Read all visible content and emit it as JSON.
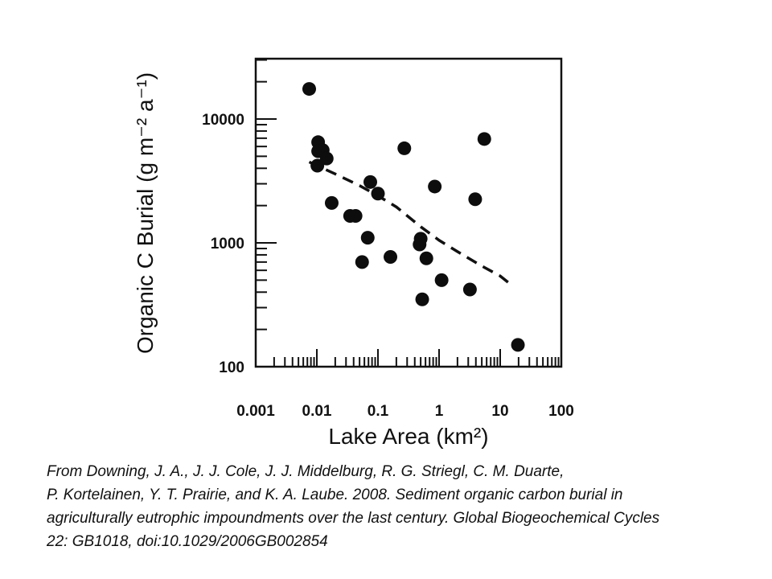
{
  "chart_data": {
    "type": "scatter",
    "title": "",
    "xlabel": "Lake Area (km²)",
    "ylabel": "Organic C Burial (g m⁻² a⁻¹)",
    "x_scale": "log",
    "y_scale": "log",
    "xlim": [
      0.001,
      100
    ],
    "ylim": [
      100,
      30000
    ],
    "x_ticks": [
      "0.001",
      "0.01",
      "0.1",
      "1",
      "10",
      "100"
    ],
    "y_ticks": [
      "100",
      "1000",
      "10000"
    ],
    "grid": false,
    "legend": "none",
    "series": [
      {
        "kind": "points",
        "x": [
          0.0075,
          0.0105,
          0.0105,
          0.0102,
          0.0125,
          0.0145,
          0.0175,
          0.035,
          0.043,
          0.055,
          0.068,
          0.075,
          0.1,
          0.16,
          0.27,
          0.48,
          0.5,
          0.53,
          0.62,
          0.85,
          1.1,
          3.2,
          3.9,
          5.5,
          19.5
        ],
        "y": [
          17500,
          6500,
          5500,
          4200,
          5600,
          4800,
          2100,
          1650,
          1650,
          700,
          1100,
          3100,
          2500,
          770,
          5800,
          970,
          1080,
          350,
          750,
          2850,
          500,
          420,
          2250,
          6900,
          150
        ]
      },
      {
        "kind": "dashed-fit",
        "x": [
          0.0075,
          0.02,
          0.05,
          0.1,
          0.2,
          0.5,
          1,
          2,
          5,
          10,
          15
        ],
        "y": [
          4500,
          3600,
          2900,
          2400,
          1950,
          1350,
          1050,
          850,
          650,
          540,
          460
        ]
      }
    ]
  },
  "caption": {
    "lines": [
      "From Downing, J. A., J. J. Cole, J. J. Middelburg, R. G. Striegl, C. M. Duarte,",
      "P. Kortelainen, Y. T. Prairie, and K. A. Laube.  2008.  Sediment organic carbon burial in",
      "agriculturally eutrophic impoundments over the last century. Global Biogeochemical Cycles",
      "22: GB1018, doi:10.1029/2006GB002854"
    ]
  }
}
